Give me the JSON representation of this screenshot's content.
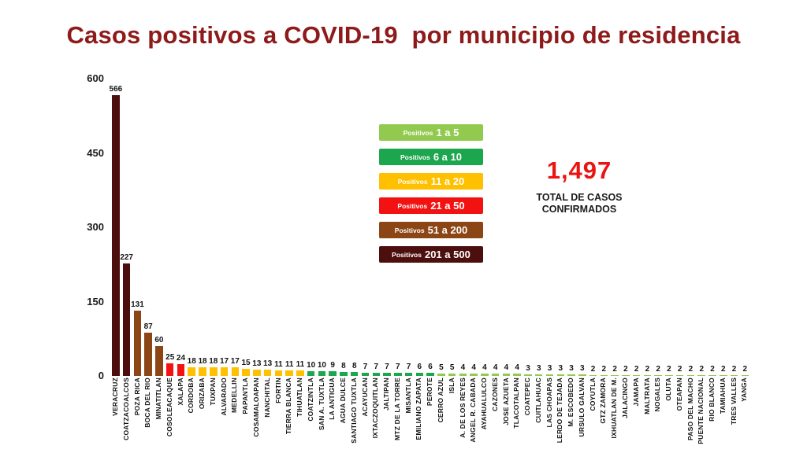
{
  "title": "Casos positivos a COVID-19  por municipio de residencia",
  "total": {
    "value": "1,497",
    "label_line1": "TOTAL DE CASOS",
    "label_line2": "CONFIRMADOS",
    "value_color": "#EC1313"
  },
  "legend": {
    "items": [
      {
        "prefix": "Positivos",
        "range": "1 a 5",
        "min": 1,
        "max": 5,
        "color": "#92C94F"
      },
      {
        "prefix": "Positivos",
        "range": "6 a 10",
        "min": 6,
        "max": 10,
        "color": "#1CA64E"
      },
      {
        "prefix": "Positivos",
        "range": "11 a 20",
        "min": 11,
        "max": 20,
        "color": "#FFC000"
      },
      {
        "prefix": "Positivos",
        "range": "21 a 50",
        "min": 21,
        "max": 50,
        "color": "#F31212"
      },
      {
        "prefix": "Positivos",
        "range": "51 a 200",
        "min": 51,
        "max": 200,
        "color": "#8C4514"
      },
      {
        "prefix": "Positivos",
        "range": "201 a 500",
        "min": 201,
        "max": 500,
        "color": "#4D0E0E"
      }
    ]
  },
  "chart_data": {
    "type": "bar",
    "title": "Casos positivos a COVID-19 por municipio de residencia",
    "xlabel": "",
    "ylabel": "",
    "ylim": [
      0,
      600
    ],
    "yticks": [
      0,
      150,
      300,
      450,
      600
    ],
    "grid": false,
    "legend_position": "center-right",
    "categories": [
      "VERACRUZ",
      "COATZACOALCOS",
      "POZA RICA",
      "BOCA DEL RIO",
      "MINATITLAN",
      "COSOLEACAQUE",
      "XALAPA",
      "CORDOBA",
      "ORIZABA",
      "TUXPAN",
      "ALVARADO",
      "MEDELLIN",
      "PAPANTLA",
      "COSAMALOAPAN",
      "NANCHITAL",
      "FORTIN",
      "TIERRA BLANCA",
      "TIHUATLAN",
      "COATZINTLA",
      "SAN A. TUXTLA",
      "LA ANTIGUA",
      "AGUA DULCE",
      "SANTIAGO TUXTLA",
      "ACAYUCAN",
      "IXTACZOQUITLAN",
      "JALTIPAN",
      "MTZ DE LA TORRE",
      "MISANTLA",
      "EMILIANO ZAPATA",
      "PEROTE",
      "CERRO AZUL",
      "ISLA",
      "A. DE LOS REYES",
      "ANGEL R. CABADA",
      "AYAHUALULCO",
      "CAZONES",
      "JOSE AZUETA",
      "TLACOTALPAN",
      "COATEPEC",
      "CUITLAHUAC",
      "LAS CHOAPAS",
      "LERDO DE TEJADA",
      "M. ESCOBEDO",
      "URSULO GALVAN",
      "COYUTLA",
      "GTZ ZAMORA",
      "IXHUATLAN DE M.",
      "JALACINGO",
      "JAMAPA",
      "MALTRATA",
      "NOGALES",
      "OLUTA",
      "OTEAPAN",
      "PASO DEL MACHO",
      "PUENTE NACIONAL",
      "RIO BLANCO",
      "TAMIAHUA",
      "TRES VALLES",
      "YANGA"
    ],
    "values": [
      566,
      227,
      131,
      87,
      60,
      25,
      24,
      18,
      18,
      18,
      17,
      17,
      15,
      13,
      13,
      11,
      11,
      11,
      10,
      10,
      9,
      8,
      8,
      7,
      7,
      7,
      7,
      7,
      6,
      6,
      5,
      5,
      4,
      4,
      4,
      4,
      4,
      4,
      3,
      3,
      3,
      3,
      3,
      3,
      2,
      2,
      2,
      2,
      2,
      2,
      2,
      2,
      2,
      2,
      2,
      2,
      2,
      2,
      2
    ],
    "colors": {
      "title": "#8E1A1A",
      "range_1_5": "#92C94F",
      "range_6_10": "#1CA64E",
      "range_11_20": "#FFC000",
      "range_21_50": "#F31212",
      "range_51_200": "#8C4514",
      "range_201_500": "#4D0E0E"
    }
  }
}
